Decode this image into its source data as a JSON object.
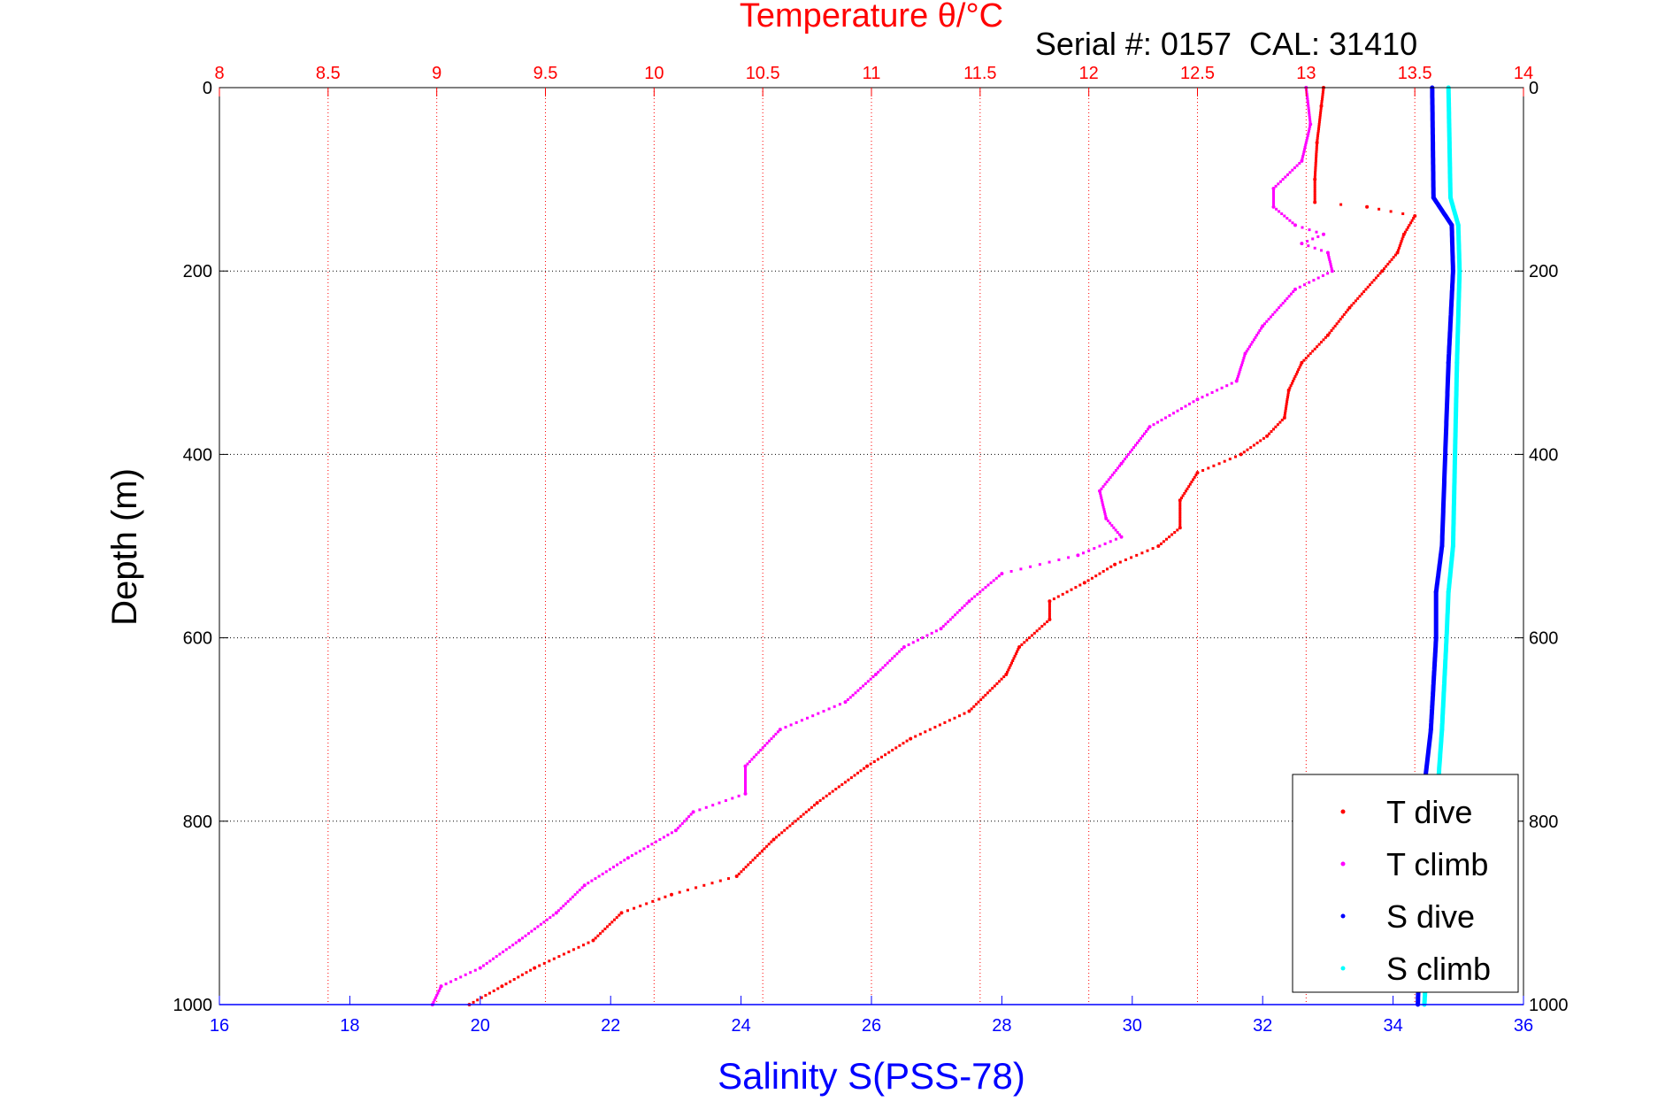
{
  "chart_data": {
    "type": "scatter",
    "title": "Temperature θ/°C",
    "subtitle": "Serial #: 0157  CAL: 31410",
    "ylabel": "Depth (m)",
    "xlabel_bottom": "Salinity S(PSS-78)",
    "xlabel_top": "Temperature θ/°C",
    "x_top_lim": [
      8,
      14
    ],
    "x_bottom_lim": [
      16,
      36
    ],
    "ylim": [
      0,
      1000
    ],
    "y_reversed": true,
    "x_top_ticks": [
      "8",
      "8.5",
      "9",
      "9.5",
      "10",
      "10.5",
      "11",
      "11.5",
      "12",
      "12.5",
      "13",
      "13.5",
      "14"
    ],
    "x_bottom_ticks": [
      "16",
      "18",
      "20",
      "22",
      "24",
      "26",
      "28",
      "30",
      "32",
      "34",
      "36"
    ],
    "y_ticks": [
      "0",
      "200",
      "400",
      "600",
      "800",
      "1000"
    ],
    "grid": true,
    "legend_position": "bottom-right",
    "colors": {
      "top_axis": "#ff0000",
      "bottom_axis": "#0000ff",
      "side_axes": "#000000"
    },
    "series": [
      {
        "name": "T dive",
        "axis": "top",
        "color": "#ff0000",
        "points": [
          [
            13.08,
            0
          ],
          [
            13.07,
            20
          ],
          [
            13.05,
            60
          ],
          [
            13.04,
            100
          ],
          [
            13.04,
            125
          ],
          [
            13.28,
            130
          ],
          [
            13.5,
            140
          ],
          [
            13.45,
            160
          ],
          [
            13.42,
            180
          ],
          [
            13.35,
            200
          ],
          [
            13.2,
            240
          ],
          [
            13.1,
            270
          ],
          [
            12.98,
            300
          ],
          [
            12.92,
            330
          ],
          [
            12.9,
            360
          ],
          [
            12.82,
            380
          ],
          [
            12.7,
            400
          ],
          [
            12.5,
            420
          ],
          [
            12.42,
            450
          ],
          [
            12.42,
            480
          ],
          [
            12.32,
            500
          ],
          [
            12.12,
            520
          ],
          [
            11.98,
            540
          ],
          [
            11.82,
            560
          ],
          [
            11.82,
            580
          ],
          [
            11.68,
            610
          ],
          [
            11.62,
            640
          ],
          [
            11.45,
            680
          ],
          [
            11.18,
            710
          ],
          [
            10.98,
            740
          ],
          [
            10.75,
            780
          ],
          [
            10.55,
            820
          ],
          [
            10.38,
            860
          ],
          [
            10.08,
            880
          ],
          [
            9.85,
            900
          ],
          [
            9.72,
            930
          ],
          [
            9.45,
            960
          ],
          [
            9.3,
            980
          ],
          [
            9.15,
            1000
          ]
        ]
      },
      {
        "name": "T climb",
        "axis": "top",
        "color": "#ff00ff",
        "points": [
          [
            13.0,
            0
          ],
          [
            13.02,
            40
          ],
          [
            12.98,
            80
          ],
          [
            12.85,
            110
          ],
          [
            12.85,
            130
          ],
          [
            12.95,
            150
          ],
          [
            13.08,
            160
          ],
          [
            12.98,
            170
          ],
          [
            13.1,
            180
          ],
          [
            13.12,
            200
          ],
          [
            12.95,
            220
          ],
          [
            12.8,
            260
          ],
          [
            12.72,
            290
          ],
          [
            12.68,
            320
          ],
          [
            12.5,
            340
          ],
          [
            12.28,
            370
          ],
          [
            12.15,
            410
          ],
          [
            12.05,
            440
          ],
          [
            12.08,
            470
          ],
          [
            12.15,
            490
          ],
          [
            11.95,
            510
          ],
          [
            11.6,
            530
          ],
          [
            11.45,
            560
          ],
          [
            11.32,
            590
          ],
          [
            11.15,
            610
          ],
          [
            11.02,
            640
          ],
          [
            10.88,
            670
          ],
          [
            10.58,
            700
          ],
          [
            10.42,
            740
          ],
          [
            10.42,
            770
          ],
          [
            10.18,
            790
          ],
          [
            10.1,
            810
          ],
          [
            9.88,
            840
          ],
          [
            9.68,
            870
          ],
          [
            9.55,
            900
          ],
          [
            9.38,
            930
          ],
          [
            9.2,
            960
          ],
          [
            9.02,
            980
          ],
          [
            8.98,
            1000
          ]
        ]
      },
      {
        "name": "S dive",
        "axis": "bottom",
        "color": "#0000ff",
        "points": [
          [
            34.6,
            0
          ],
          [
            34.62,
            120
          ],
          [
            34.9,
            150
          ],
          [
            34.92,
            200
          ],
          [
            34.85,
            300
          ],
          [
            34.8,
            400
          ],
          [
            34.75,
            500
          ],
          [
            34.66,
            550
          ],
          [
            34.66,
            600
          ],
          [
            34.58,
            700
          ],
          [
            34.5,
            750
          ],
          [
            34.45,
            850
          ],
          [
            34.4,
            950
          ],
          [
            34.38,
            1000
          ]
        ]
      },
      {
        "name": "S climb",
        "axis": "bottom",
        "color": "#00ffff",
        "points": [
          [
            34.85,
            0
          ],
          [
            34.88,
            120
          ],
          [
            35.0,
            150
          ],
          [
            35.02,
            200
          ],
          [
            34.98,
            300
          ],
          [
            34.95,
            400
          ],
          [
            34.92,
            500
          ],
          [
            34.85,
            550
          ],
          [
            34.82,
            600
          ],
          [
            34.75,
            700
          ],
          [
            34.7,
            750
          ],
          [
            34.6,
            850
          ],
          [
            34.52,
            950
          ],
          [
            34.48,
            1000
          ]
        ]
      }
    ]
  }
}
